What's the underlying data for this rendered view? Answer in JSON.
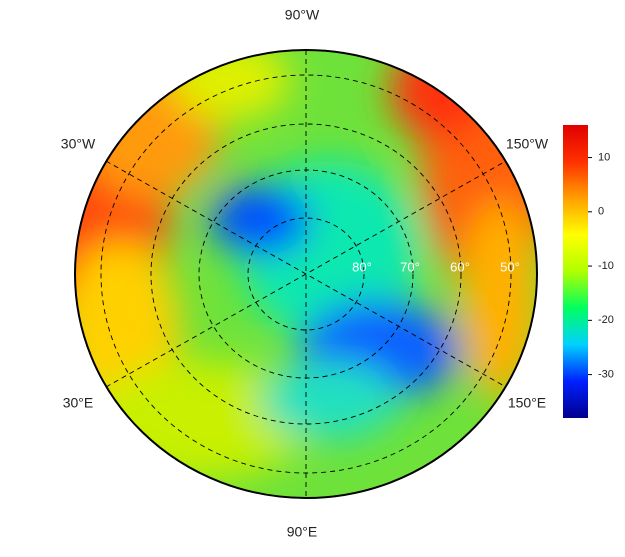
{
  "map": {
    "longitude_labels": [
      "90°W",
      "30°W",
      "150°W",
      "30°E",
      "150°E",
      "90°E"
    ],
    "latitude_labels": [
      "80°",
      "70°",
      "60°",
      "50°"
    ],
    "colorbar": {
      "lim": [
        -38,
        16
      ],
      "ticks": [
        10,
        0,
        -10,
        -20,
        -30
      ],
      "colors": [
        "#00008f",
        "#0020ff",
        "#00d0ff",
        "#00ff60",
        "#b0ff00",
        "#ffff00",
        "#ffa000",
        "#ff3000",
        "#e00000"
      ]
    }
  }
}
